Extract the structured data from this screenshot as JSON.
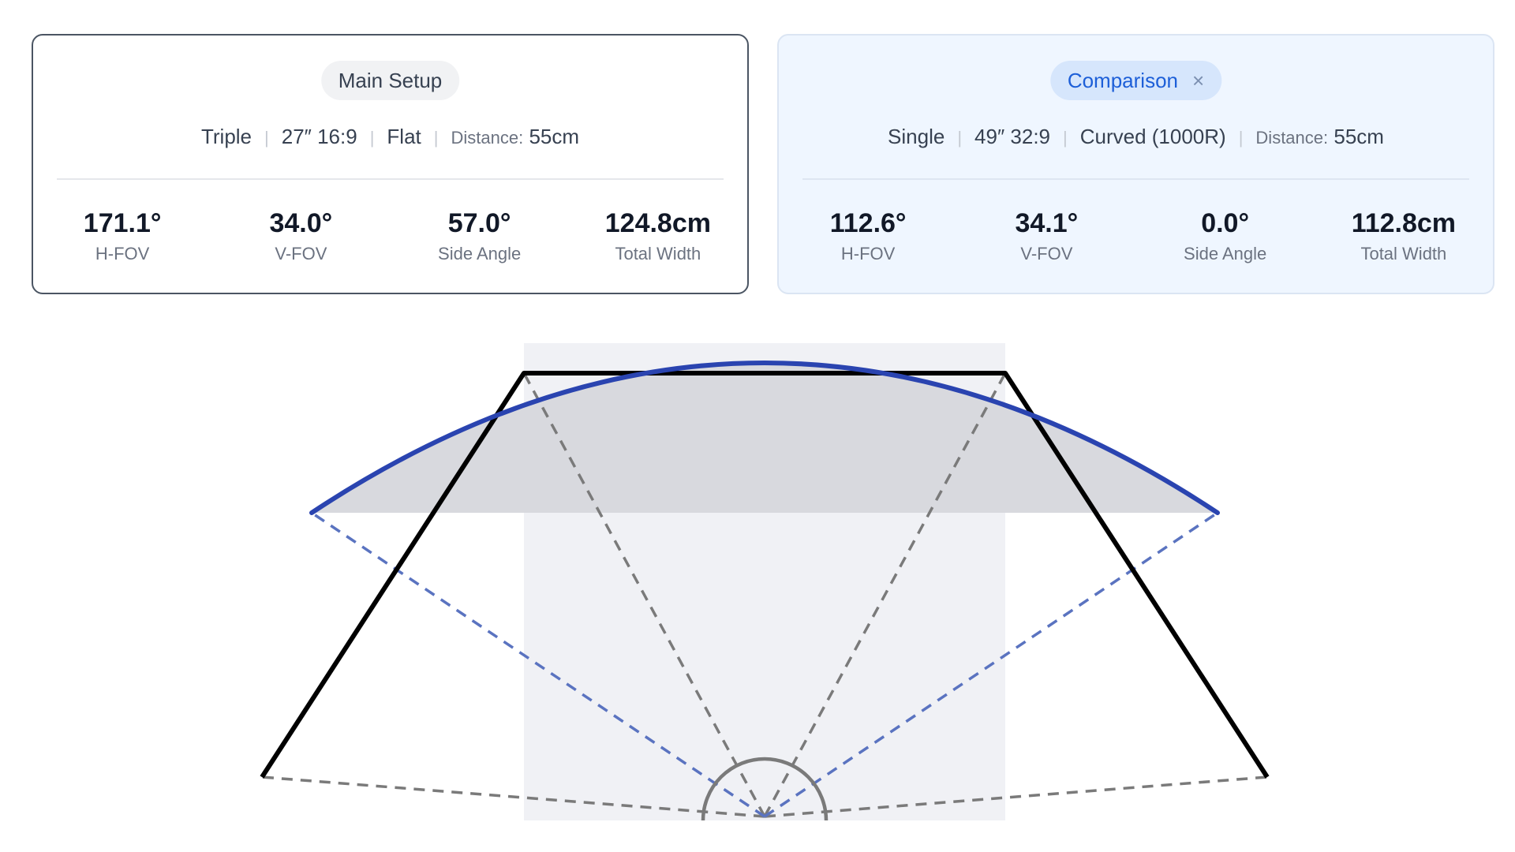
{
  "main_setup": {
    "title": "Main Setup",
    "config": [
      "Triple",
      "27″ 16:9",
      "Flat"
    ],
    "distance_label": "Distance:",
    "distance_value": "55cm",
    "stats": [
      {
        "value": "171.1°",
        "label": "H-FOV"
      },
      {
        "value": "34.0°",
        "label": "V-FOV"
      },
      {
        "value": "57.0°",
        "label": "Side Angle"
      },
      {
        "value": "124.8cm",
        "label": "Total Width"
      }
    ]
  },
  "comparison": {
    "title": "Comparison",
    "close_symbol": "×",
    "config": [
      "Single",
      "49″ 32:9",
      "Curved (1000R)"
    ],
    "distance_label": "Distance:",
    "distance_value": "55cm",
    "stats": [
      {
        "value": "112.6°",
        "label": "H-FOV"
      },
      {
        "value": "34.1°",
        "label": "V-FOV"
      },
      {
        "value": "0.0°",
        "label": "Side Angle"
      },
      {
        "value": "112.8cm",
        "label": "Total Width"
      }
    ]
  },
  "colors": {
    "main_outline": "#000000",
    "comparison_curve": "#2a44b0",
    "comparison_rays": "#5a73c0",
    "main_rays": "#7a7a7a",
    "shading": "#e9ebf0"
  },
  "icons": {
    "close": "close-icon"
  }
}
